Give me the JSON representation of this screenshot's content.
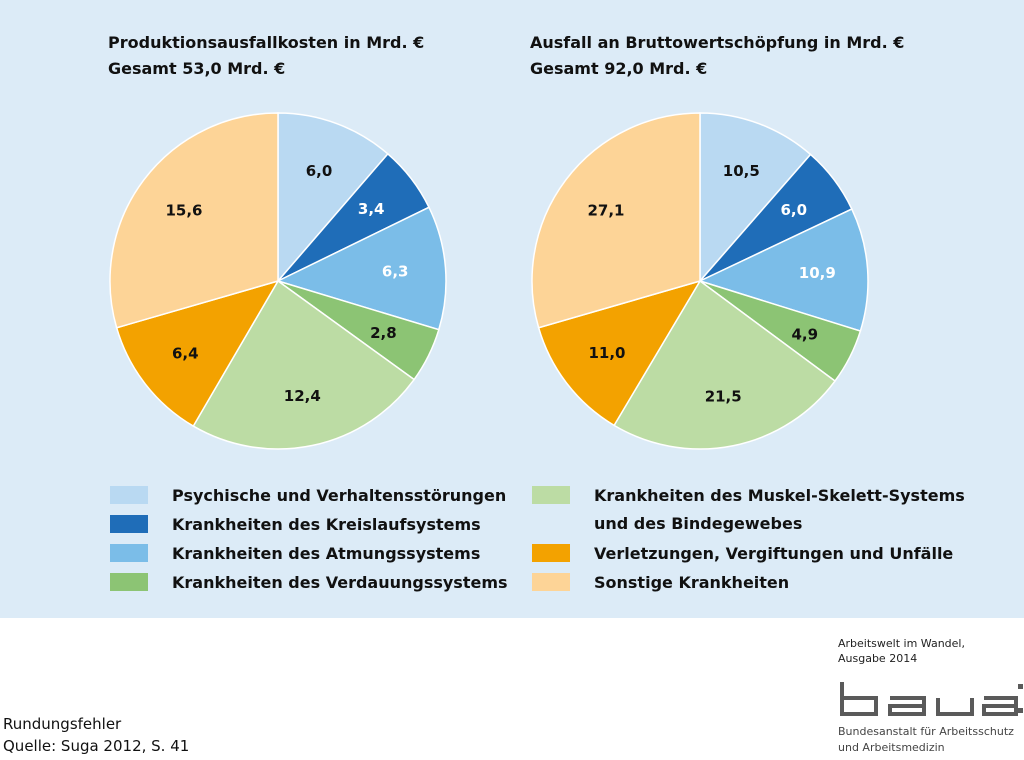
{
  "chart_data": [
    {
      "type": "pie",
      "title": "Produktionsausfallkosten in Mrd. €",
      "subtitle": "Gesamt 53,0 Mrd. €",
      "categories": [
        "Psychische und Verhaltensstörungen",
        "Krankheiten des Kreislaufsystems",
        "Krankheiten des Atmungssystems",
        "Krankheiten des Verdauungssystems",
        "Krankheiten des Muskel-Skelett-Systems und des Bindegewebes",
        "Verletzungen, Vergiftungen und Unfälle",
        "Sonstige Krankheiten"
      ],
      "values": [
        6.0,
        3.4,
        6.3,
        2.8,
        12.4,
        6.4,
        15.6
      ],
      "labels": [
        "6,0",
        "3,4",
        "6,3",
        "2,8",
        "12,4",
        "6,4",
        "15,6"
      ],
      "start": "12 o'clock, clockwise"
    },
    {
      "type": "pie",
      "title": "Ausfall an Bruttowertschöpfung in Mrd. €",
      "subtitle": "Gesamt 92,0 Mrd. €",
      "categories": [
        "Psychische und Verhaltensstörungen",
        "Krankheiten des Kreislaufsystems",
        "Krankheiten des Atmungssystems",
        "Krankheiten des Verdauungssystems",
        "Krankheiten des Muskel-Skelett-Systems und des Bindegewebes",
        "Verletzungen, Vergiftungen und Unfälle",
        "Sonstige Krankheiten"
      ],
      "values": [
        10.5,
        6.0,
        10.9,
        4.9,
        21.5,
        11.0,
        27.1
      ],
      "labels": [
        "10,5",
        "6,0",
        "10,9",
        "4,9",
        "21,5",
        "11,0",
        "27,1"
      ],
      "start": "12 o'clock, clockwise"
    }
  ],
  "colors": [
    "#b9d9f2",
    "#1f6db8",
    "#7bbde8",
    "#8cc474",
    "#bcdca4",
    "#f3a200",
    "#fdd497"
  ],
  "label_colors": [
    "#111111",
    "#ffffff",
    "#ffffff",
    "#111111",
    "#111111",
    "#111111",
    "#111111"
  ],
  "legend": {
    "left": [
      "Psychische und Verhaltensstörungen",
      "Krankheiten des Kreislaufsystems",
      "Krankheiten des Atmungssystems",
      "Krankheiten des Verdauungssystems"
    ],
    "right": [
      "Krankheiten des Muskel-Skelett-Systems",
      "Verletzungen, Vergiftungen und Unfälle",
      "Sonstige Krankheiten"
    ],
    "right_continuation": "und des Bindegewebes"
  },
  "footer": {
    "note": "Rundungsfehler",
    "source": "Quelle: Suga 2012, S. 41",
    "publication_line1": "Arbeitswelt im Wandel,",
    "publication_line2": "Ausgabe 2014",
    "logo_text": "baua:",
    "org_line1": "Bundesanstalt für Arbeitsschutz",
    "org_line2": "und Arbeitsmedizin"
  }
}
